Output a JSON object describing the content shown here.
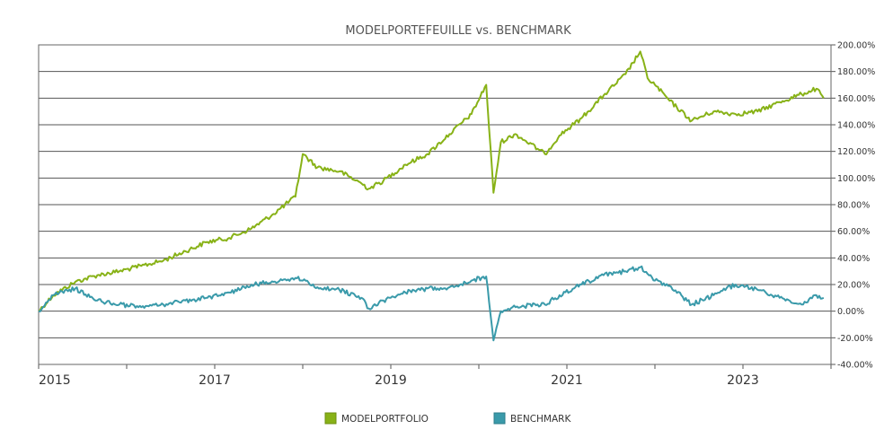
{
  "chart_data": {
    "type": "line",
    "title": "MODELPORTEFEUILLE vs. BENCHMARK",
    "xlabel": "",
    "ylabel": "",
    "x_tick_labels": [
      "2015",
      "2017",
      "2019",
      "2021",
      "2023"
    ],
    "y_tick_labels": [
      "200.00%",
      "180.00%",
      "160.00%",
      "140.00%",
      "120.00%",
      "100.00%",
      "80.00%",
      "60.00%",
      "40.00%",
      "20.00%",
      "0.00%",
      "-20.00%",
      "-40.00%"
    ],
    "x_range": [
      "2015-01",
      "2024-01"
    ],
    "ylim": [
      -40,
      200
    ],
    "y_unit": "%",
    "grid": "horizontal",
    "legend_position": "bottom-center",
    "series": [
      {
        "name": "MODELPORTFOLIO",
        "color": "#88b217",
        "x": [
          "2015-01",
          "2015-03",
          "2015-06",
          "2015-09",
          "2015-12",
          "2016-03",
          "2016-06",
          "2016-09",
          "2016-12",
          "2017-03",
          "2017-06",
          "2017-09",
          "2017-12",
          "2018-01",
          "2018-03",
          "2018-06",
          "2018-09",
          "2018-10",
          "2018-12",
          "2019-03",
          "2019-06",
          "2019-09",
          "2019-12",
          "2020-02",
          "2020-03",
          "2020-04",
          "2020-06",
          "2020-09",
          "2020-10",
          "2020-12",
          "2021-03",
          "2021-06",
          "2021-09",
          "2021-11",
          "2021-12",
          "2022-01",
          "2022-03",
          "2022-06",
          "2022-09",
          "2022-12",
          "2023-03",
          "2023-06",
          "2023-09",
          "2023-11",
          "2023-12"
        ],
        "values": [
          0,
          12,
          22,
          27,
          30,
          34,
          38,
          45,
          52,
          55,
          62,
          73,
          86,
          118,
          108,
          105,
          96,
          92,
          98,
          110,
          118,
          133,
          148,
          170,
          89,
          127,
          133,
          122,
          118,
          132,
          145,
          162,
          178,
          195,
          175,
          170,
          158,
          143,
          150,
          148,
          150,
          157,
          163,
          167,
          160
        ]
      },
      {
        "name": "BENCHMARK",
        "color": "#3a9aaa",
        "x": [
          "2015-01",
          "2015-03",
          "2015-06",
          "2015-09",
          "2015-12",
          "2016-03",
          "2016-06",
          "2016-09",
          "2016-12",
          "2017-03",
          "2017-06",
          "2017-09",
          "2017-12",
          "2018-01",
          "2018-03",
          "2018-06",
          "2018-09",
          "2018-10",
          "2018-12",
          "2019-03",
          "2019-06",
          "2019-09",
          "2019-12",
          "2020-02",
          "2020-03",
          "2020-04",
          "2020-06",
          "2020-09",
          "2020-10",
          "2020-12",
          "2021-03",
          "2021-06",
          "2021-09",
          "2021-11",
          "2021-12",
          "2022-01",
          "2022-03",
          "2022-06",
          "2022-09",
          "2022-12",
          "2023-03",
          "2023-06",
          "2023-09",
          "2023-11",
          "2023-12"
        ],
        "values": [
          0,
          12,
          17,
          8,
          5,
          3,
          5,
          8,
          10,
          14,
          20,
          22,
          25,
          23,
          18,
          16,
          10,
          2,
          8,
          14,
          17,
          18,
          23,
          26,
          -22,
          0,
          3,
          5,
          5,
          12,
          20,
          27,
          30,
          33,
          28,
          23,
          19,
          5,
          12,
          20,
          16,
          10,
          5,
          12,
          10
        ]
      }
    ]
  }
}
